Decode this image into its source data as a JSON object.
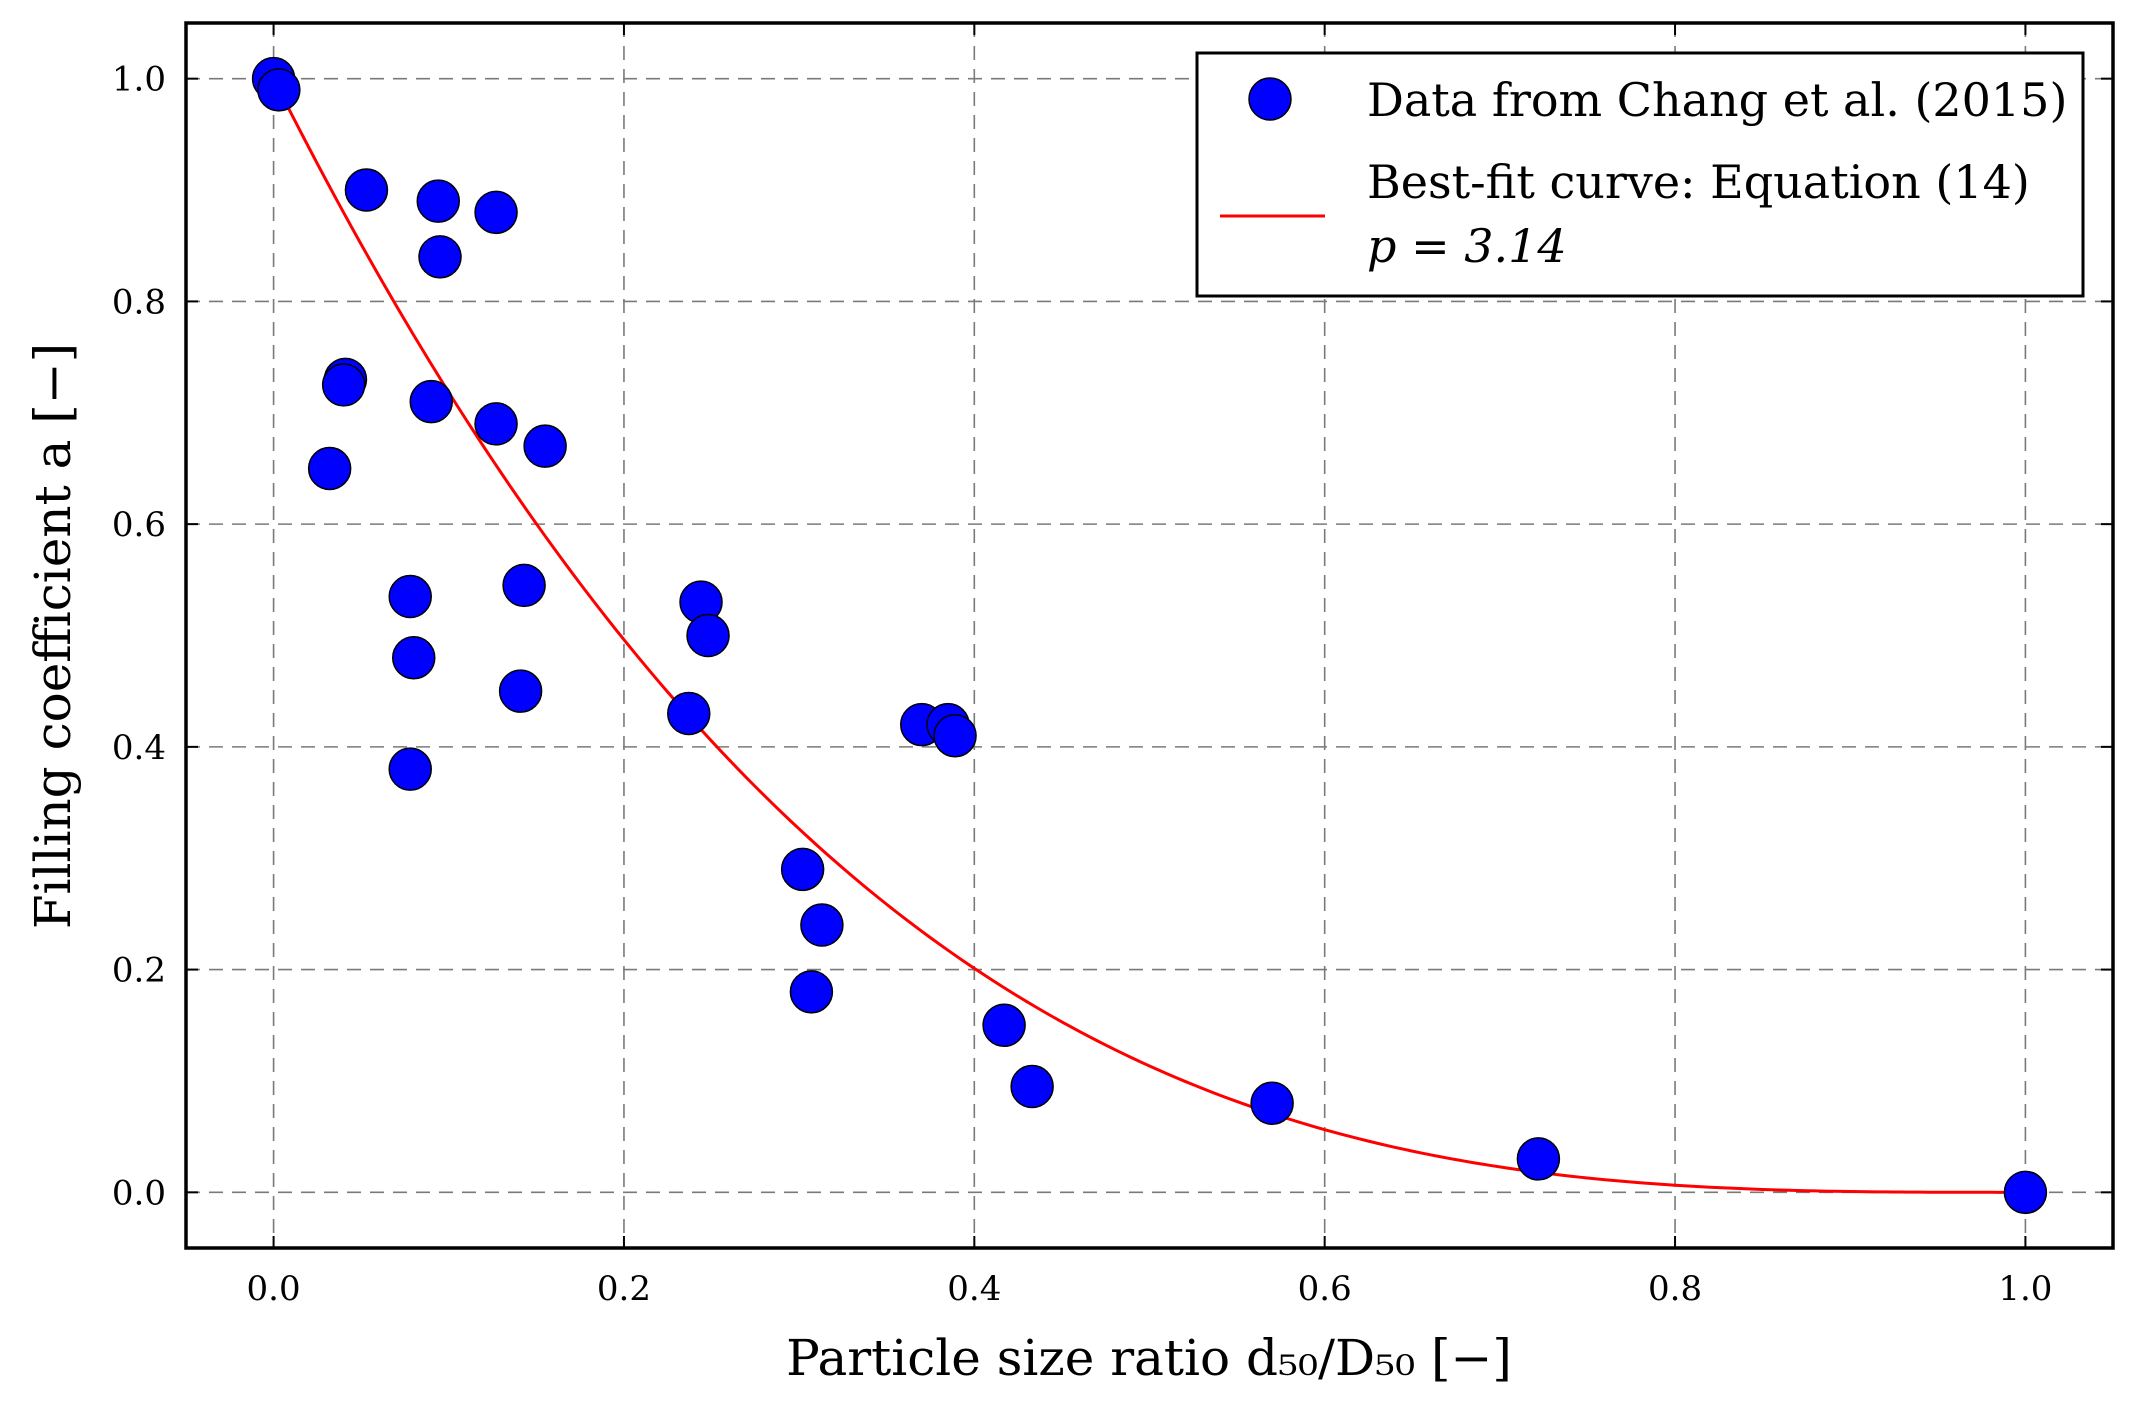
{
  "chart_data": {
    "type": "scatter",
    "xlabel": "Particle size ratio d₅₀/D₅₀ [−]",
    "ylabel": "Filling coefficient a [−]",
    "xlim": [
      -0.05,
      1.05
    ],
    "ylim": [
      -0.05,
      1.05
    ],
    "x_ticks": [
      0.0,
      0.2,
      0.4,
      0.6,
      0.8,
      1.0
    ],
    "y_ticks": [
      0.0,
      0.2,
      0.4,
      0.6,
      0.8,
      1.0
    ],
    "x_tick_labels": [
      "0.0",
      "0.2",
      "0.4",
      "0.6",
      "0.8",
      "1.0"
    ],
    "y_tick_labels": [
      "0.0",
      "0.2",
      "0.4",
      "0.6",
      "0.8",
      "1.0"
    ],
    "grid": true,
    "legend_position": "top-right",
    "series": [
      {
        "name": "Data from Chang et al. (2015)",
        "kind": "scatter",
        "color": "#0000ff",
        "points": [
          [
            0.0,
            1.0
          ],
          [
            0.003,
            0.99
          ],
          [
            0.053,
            0.9
          ],
          [
            0.094,
            0.89
          ],
          [
            0.127,
            0.88
          ],
          [
            0.095,
            0.84
          ],
          [
            0.041,
            0.73
          ],
          [
            0.04,
            0.725
          ],
          [
            0.09,
            0.71
          ],
          [
            0.127,
            0.69
          ],
          [
            0.155,
            0.67
          ],
          [
            0.032,
            0.65
          ],
          [
            0.143,
            0.545
          ],
          [
            0.078,
            0.535
          ],
          [
            0.08,
            0.48
          ],
          [
            0.141,
            0.45
          ],
          [
            0.078,
            0.38
          ],
          [
            0.244,
            0.53
          ],
          [
            0.248,
            0.5
          ],
          [
            0.237,
            0.43
          ],
          [
            0.37,
            0.42
          ],
          [
            0.385,
            0.42
          ],
          [
            0.389,
            0.41
          ],
          [
            0.302,
            0.29
          ],
          [
            0.313,
            0.24
          ],
          [
            0.307,
            0.18
          ],
          [
            0.417,
            0.15
          ],
          [
            0.433,
            0.095
          ],
          [
            0.57,
            0.08
          ],
          [
            0.722,
            0.03
          ],
          [
            1.0,
            0.0
          ]
        ]
      },
      {
        "name": "Best-fit curve: Equation (14)",
        "name_line2": "p = 3.14",
        "kind": "line",
        "color": "#ff0000",
        "equation": "a = (1 - x)^p",
        "p": 3.14,
        "x_range": [
          0.0,
          1.0
        ]
      }
    ]
  }
}
